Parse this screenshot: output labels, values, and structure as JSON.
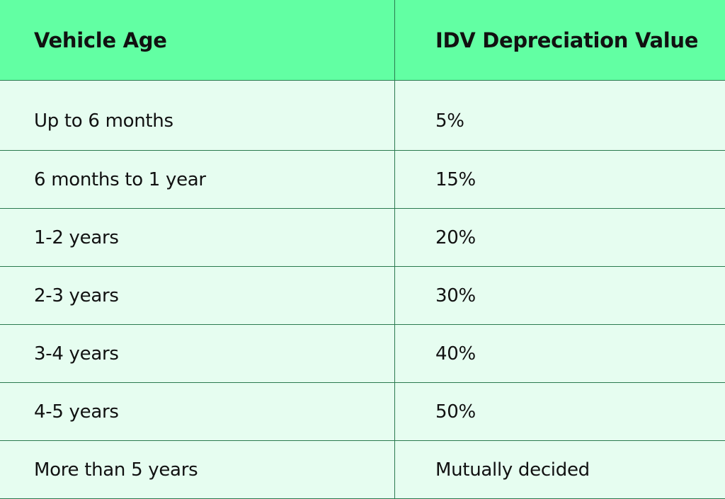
{
  "table": {
    "headers": [
      "Vehicle Age",
      "IDV Depreciation Value"
    ],
    "rows": [
      [
        "Up to 6 months",
        "5%"
      ],
      [
        "6 months to 1 year",
        "15%"
      ],
      [
        "1-2 years",
        "20%"
      ],
      [
        "2-3 years",
        "30%"
      ],
      [
        "3-4 years",
        "40%"
      ],
      [
        "4-5 years",
        "50%"
      ],
      [
        "More than 5 years",
        "Mutually decided"
      ]
    ]
  },
  "colors": {
    "header_bg": "#62ffa3",
    "row_bg": "#e6fdf0",
    "border": "#2a7a4f"
  }
}
